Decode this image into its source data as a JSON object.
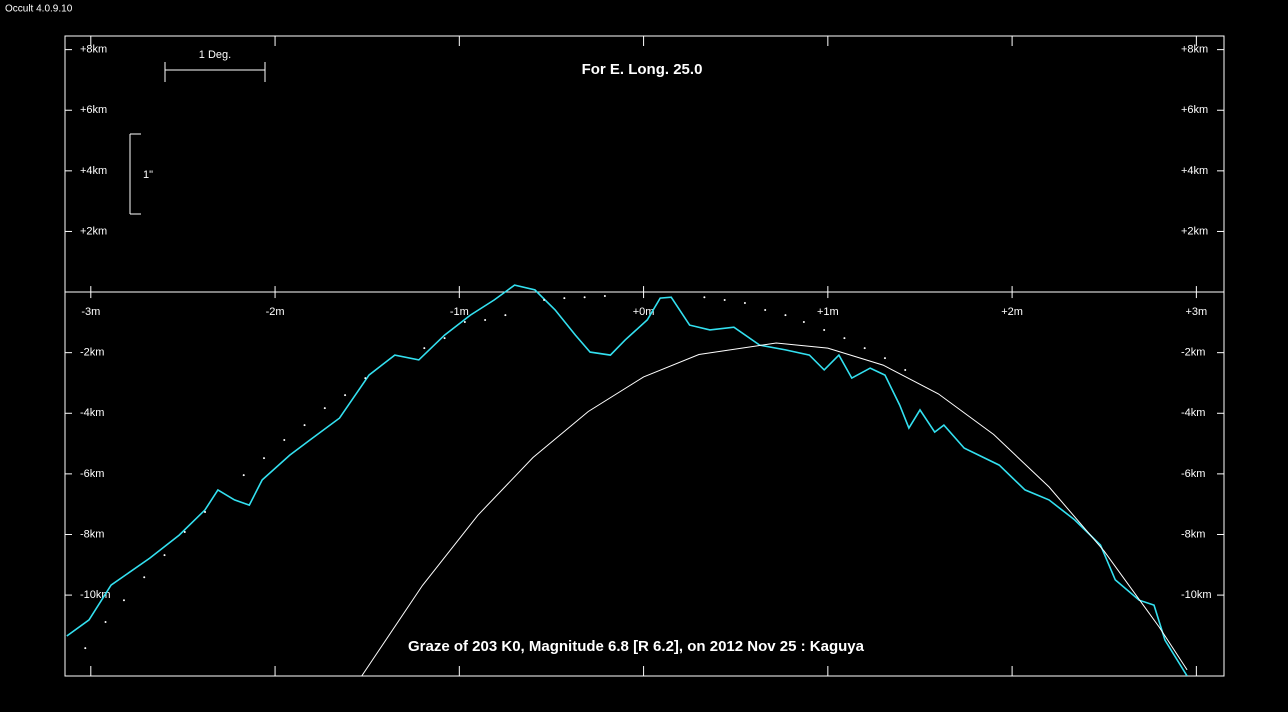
{
  "window_title": "Occult 4.0.9.10",
  "chart_data": {
    "type": "line",
    "title": "For E. Long. 25.0",
    "caption": "Graze of  203 K0,  Magnitude 6.8 [R 6.2],  on 2012 Nov 25  :  Kaguya",
    "scale_bar_x_label": "1 Deg.",
    "scale_bar_y_label": "1\"",
    "xlim": [
      -3.14,
      3.15
    ],
    "ylim": [
      -12.67,
      8.45
    ],
    "xticks": [
      {
        "value": -3,
        "label": "-3m"
      },
      {
        "value": -2,
        "label": "-2m"
      },
      {
        "value": -1,
        "label": "-1m"
      },
      {
        "value": 0,
        "label": "+0m"
      },
      {
        "value": 1,
        "label": "+1m"
      },
      {
        "value": 2,
        "label": "+2m"
      },
      {
        "value": 3,
        "label": "+3m"
      }
    ],
    "yticks": [
      {
        "value": 8,
        "label": "+8km"
      },
      {
        "value": 6,
        "label": "+6km"
      },
      {
        "value": 4,
        "label": "+4km"
      },
      {
        "value": 2,
        "label": "+2km"
      },
      {
        "value": -2,
        "label": "-2km"
      },
      {
        "value": -4,
        "label": "-4km"
      },
      {
        "value": -6,
        "label": "-6km"
      },
      {
        "value": -8,
        "label": "-8km"
      },
      {
        "value": -10,
        "label": "-10km"
      }
    ],
    "series": [
      {
        "color": "#33e0f0",
        "mode": "line",
        "x": [
          -3.13,
          -3.01,
          -2.89,
          -2.68,
          -2.52,
          -2.38,
          -2.31,
          -2.22,
          -2.14,
          -2.07,
          -1.92,
          -1.81,
          -1.65,
          -1.49,
          -1.35,
          -1.22,
          -1.08,
          -0.94,
          -0.81,
          -0.7,
          -0.59,
          -0.48,
          -0.37,
          -0.29,
          -0.18,
          -0.1,
          0.02,
          0.09,
          0.15,
          0.25,
          0.36,
          0.49,
          0.63,
          0.77,
          0.9,
          0.98,
          1.06,
          1.13,
          1.23,
          1.31,
          1.39,
          1.44,
          1.5,
          1.58,
          1.63,
          1.74,
          1.93,
          2.07,
          2.2,
          2.34,
          2.48,
          2.56,
          2.69,
          2.77,
          2.83,
          2.95
        ],
        "values": [
          -11.35,
          -10.82,
          -9.67,
          -8.78,
          -8.02,
          -7.19,
          -6.53,
          -6.86,
          -7.03,
          -6.2,
          -5.38,
          -4.88,
          -4.16,
          -2.74,
          -2.08,
          -2.24,
          -1.42,
          -0.76,
          -0.26,
          0.23,
          0.07,
          -0.59,
          -1.42,
          -1.98,
          -2.08,
          -1.58,
          -0.92,
          -0.2,
          -0.17,
          -1.09,
          -1.25,
          -1.16,
          -1.75,
          -1.91,
          -2.08,
          -2.57,
          -2.08,
          -2.84,
          -2.51,
          -2.74,
          -3.73,
          -4.49,
          -3.89,
          -4.62,
          -4.39,
          -5.15,
          -5.71,
          -6.53,
          -6.86,
          -7.52,
          -8.35,
          -9.5,
          -10.17,
          -10.33,
          -11.49,
          -12.67
        ]
      },
      {
        "color": "#ffffff",
        "mode": "line",
        "x": [
          -1.53,
          -1.2,
          -0.9,
          -0.6,
          -0.3,
          0,
          0.3,
          0.72,
          1.0,
          1.3,
          1.6,
          1.9,
          2.2,
          2.5,
          2.8,
          2.95
        ],
        "values": [
          -12.67,
          -9.68,
          -7.37,
          -5.46,
          -3.94,
          -2.8,
          -2.06,
          -1.68,
          -1.85,
          -2.41,
          -3.36,
          -4.7,
          -6.43,
          -8.55,
          -11.07,
          -12.47
        ]
      },
      {
        "color": "#ffffff",
        "mode": "points",
        "x": [
          -3.03,
          -2.92,
          -2.82,
          -2.71,
          -2.6,
          -2.49,
          -2.38,
          -2.17,
          -2.06,
          -1.95,
          -1.84,
          -1.73,
          -1.62,
          -1.51,
          -1.19,
          -1.08,
          -0.97,
          -0.86,
          -0.75,
          -0.54,
          -0.43,
          -0.32,
          -0.21,
          0.33,
          0.44,
          0.55,
          0.66,
          0.77,
          0.87,
          0.98,
          1.09,
          1.2,
          1.31,
          1.42
        ],
        "values": [
          -11.75,
          -10.89,
          -10.17,
          -9.41,
          -8.68,
          -7.92,
          -7.26,
          -6.04,
          -5.48,
          -4.88,
          -4.39,
          -3.83,
          -3.4,
          -2.84,
          -1.85,
          -1.52,
          -0.99,
          -0.92,
          -0.76,
          -0.26,
          -0.2,
          -0.17,
          -0.13,
          -0.17,
          -0.26,
          -0.36,
          -0.59,
          -0.76,
          -0.99,
          -1.25,
          -1.52,
          -1.85,
          -2.18,
          -2.57
        ]
      }
    ]
  }
}
